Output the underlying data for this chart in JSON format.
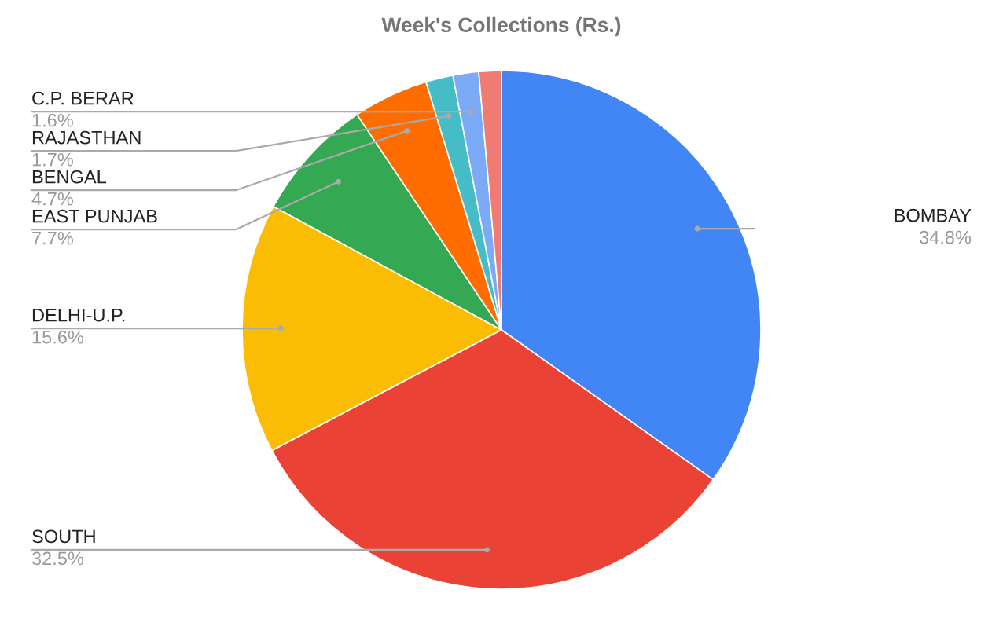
{
  "chart_data": {
    "type": "pie",
    "title": "Week's Collections (Rs.)",
    "categories": [
      "BOMBAY",
      "SOUTH",
      "DELHI-U.P.",
      "EAST PUNJAB",
      "BENGAL",
      "RAJASTHAN",
      "C.P. BERAR",
      null
    ],
    "values": [
      34.8,
      32.5,
      15.6,
      7.7,
      4.7,
      1.7,
      1.6,
      1.4
    ],
    "value_labels": [
      "34.8%",
      "32.5%",
      "15.6%",
      "7.7%",
      "4.7%",
      "1.7%",
      "1.6%",
      null
    ],
    "colors": [
      "#4285f4",
      "#ea4335",
      "#fbbc04",
      "#34a853",
      "#ff6d01",
      "#46bdc6",
      "#7baaf7",
      "#f07b72"
    ]
  }
}
